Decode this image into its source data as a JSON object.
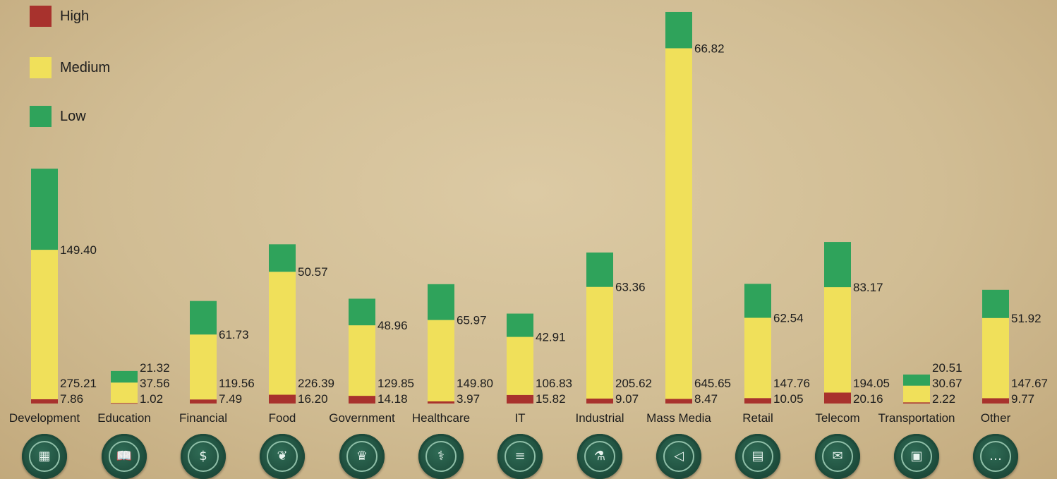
{
  "legend": [
    {
      "label": "High",
      "color": "#a8322d"
    },
    {
      "label": "Medium",
      "color": "#f0e05a"
    },
    {
      "label": "Low",
      "color": "#2fa35b"
    }
  ],
  "chart_data": {
    "type": "bar",
    "stacked": true,
    "categories": [
      "Development",
      "Education",
      "Financial",
      "Food",
      "Government",
      "Healthcare",
      "IT",
      "Industrial",
      "Mass Media",
      "Retail",
      "Telecom",
      "Transportation",
      "Other"
    ],
    "series": [
      {
        "name": "High",
        "color": "#a8322d",
        "values": [
          7.86,
          1.02,
          7.49,
          16.2,
          14.18,
          3.97,
          15.82,
          9.07,
          8.47,
          10.05,
          20.16,
          2.22,
          9.77
        ],
        "labels": [
          "7.86",
          "1.02",
          "7.49",
          "16.20",
          "14.18",
          "3.97",
          "15.82",
          "9.07",
          "8.47",
          "10.05",
          "20.16",
          "2.22",
          "9.77"
        ]
      },
      {
        "name": "Medium",
        "color": "#f0e05a",
        "values": [
          275.21,
          37.56,
          119.56,
          226.39,
          129.85,
          149.8,
          106.83,
          205.62,
          645.65,
          147.76,
          194.05,
          30.67,
          147.67
        ],
        "labels": [
          "275.21",
          "37.56",
          "119.56",
          "226.39",
          "129.85",
          "149.80",
          "106.83",
          "205.62",
          "645.65",
          "147.76",
          "194.05",
          "30.67",
          "147.67"
        ]
      },
      {
        "name": "Low",
        "color": "#2fa35b",
        "values": [
          149.4,
          21.32,
          61.73,
          50.57,
          48.96,
          65.97,
          42.91,
          63.36,
          66.82,
          62.54,
          83.17,
          20.51,
          51.92
        ],
        "labels": [
          "149.40",
          "21.32",
          "61.73",
          "50.57",
          "48.96",
          "65.97",
          "42.91",
          "63.36",
          "66.82",
          "62.54",
          "83.17",
          "20.51",
          "51.92"
        ]
      }
    ],
    "ylim": [
      0,
      730
    ],
    "legend_position": "top-left",
    "grid": false,
    "icons": [
      "wall-icon",
      "book-icon",
      "money-bag-icon",
      "wheat-icon",
      "crown-icon",
      "caduceus-icon",
      "scroll-icon",
      "microscope-icon",
      "megaphone-icon",
      "shop-icon",
      "envelope-icon",
      "truck-icon",
      "more-icon"
    ]
  }
}
